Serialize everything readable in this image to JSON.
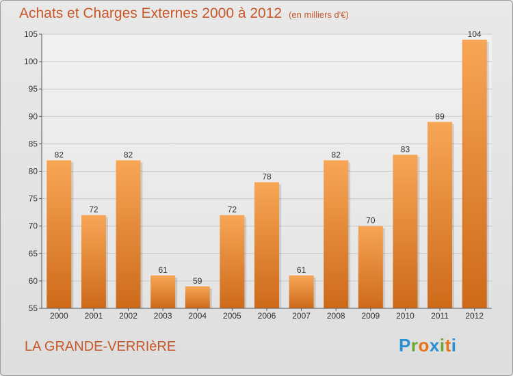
{
  "title": "Achats et Charges Externes 2000 à 2012",
  "title_unit": "(en milliers d'€)",
  "commune": "LA GRANDE-VERRIèRE",
  "logo": {
    "text": "Proxiti",
    "letter_colors": [
      "#2b8fd6",
      "#6aa832",
      "#e8731d",
      "#2b8fd6",
      "#6aa832",
      "#e8731d",
      "#2b8fd6"
    ]
  },
  "colors": {
    "bar_top": "#f7a656",
    "bar_bottom": "#cd6a1a",
    "grid": "#c8c8c8",
    "accent_text": "#c8572a"
  },
  "chart_data": {
    "type": "bar",
    "categories": [
      "2000",
      "2001",
      "2002",
      "2003",
      "2004",
      "2005",
      "2006",
      "2007",
      "2008",
      "2009",
      "2010",
      "2011",
      "2012"
    ],
    "values": [
      82,
      72,
      82,
      61,
      59,
      72,
      78,
      61,
      82,
      70,
      83,
      89,
      104
    ],
    "title": "Achats et Charges Externes 2000 à 2012",
    "ylim": [
      55,
      105
    ],
    "yticks": [
      55,
      60,
      65,
      70,
      75,
      80,
      85,
      90,
      95,
      100,
      105
    ],
    "grid": true,
    "legend": "none"
  }
}
